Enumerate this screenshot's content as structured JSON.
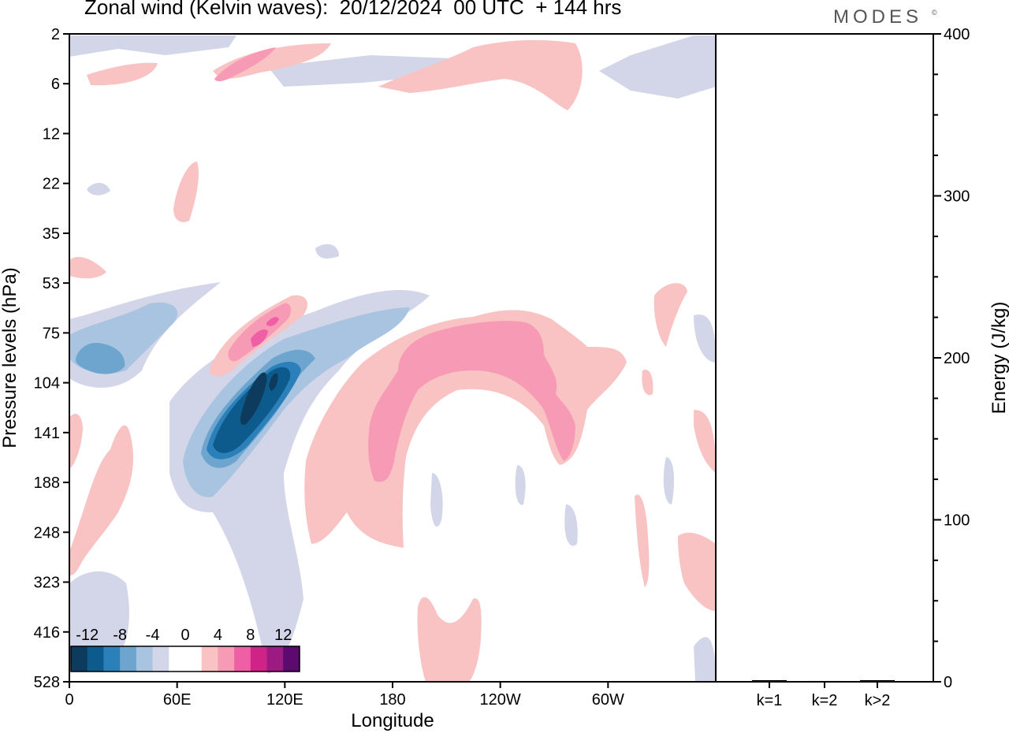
{
  "title": "Zonal wind (Kelvin waves):  20/12/2024  00 UTC  + 144 hrs",
  "brand": "MODES",
  "brand_mark": "©",
  "chart_data": [
    {
      "type": "heatmap",
      "ylabel": "Pressure levels (hPa)",
      "xlabel": "Longitude",
      "y_ticks": [
        "2",
        "6",
        "12",
        "22",
        "35",
        "53",
        "75",
        "104",
        "141",
        "188",
        "248",
        "323",
        "416",
        "528"
      ],
      "x_ticks": [
        {
          "label": "0",
          "lon": 0
        },
        {
          "label": "60E",
          "lon": 60
        },
        {
          "label": "120E",
          "lon": 120
        },
        {
          "label": "180",
          "lon": 180
        },
        {
          "label": "120W",
          "lon": 240
        },
        {
          "label": "60W",
          "lon": 300
        }
      ],
      "xlim": [
        0,
        360
      ],
      "ylim": [
        2,
        528
      ],
      "colorbar": {
        "labels": [
          "-12",
          "-8",
          "-4",
          "0",
          "4",
          "8",
          "12"
        ],
        "colors": [
          "#0d3b5e",
          "#0d5a8c",
          "#2b80ba",
          "#6ea5cf",
          "#a9c4e1",
          "#d3d5e8",
          "#ffffff",
          "#ffffff",
          "#f9c3c3",
          "#f79ab5",
          "#ef5fa5",
          "#cf2388",
          "#9c1b83",
          "#5c0a6e"
        ]
      },
      "features": [
        {
          "name": "neg-core",
          "level": -14,
          "lon": 103,
          "p": 125
        },
        {
          "name": "neg-band",
          "level": -6,
          "lon": 110,
          "p": 120
        },
        {
          "name": "neg-west",
          "level": -5,
          "lon": 20,
          "p": 90
        },
        {
          "name": "pos-descending",
          "level": 6,
          "lon": 100,
          "p": 80
        },
        {
          "name": "pos-broad-arch",
          "level": 6,
          "lon": 240,
          "p": 90
        },
        {
          "name": "pos-large-scale",
          "level": 2,
          "lon": 200,
          "p": 150
        }
      ]
    },
    {
      "type": "bar",
      "ylabel": "Energy (J/kg)",
      "categories": [
        "k=1",
        "k=2",
        "k>2"
      ],
      "values": [
        1,
        0.5,
        1
      ],
      "ylim": [
        0,
        400
      ],
      "y_ticks": [
        0,
        100,
        200,
        300,
        400
      ]
    }
  ]
}
